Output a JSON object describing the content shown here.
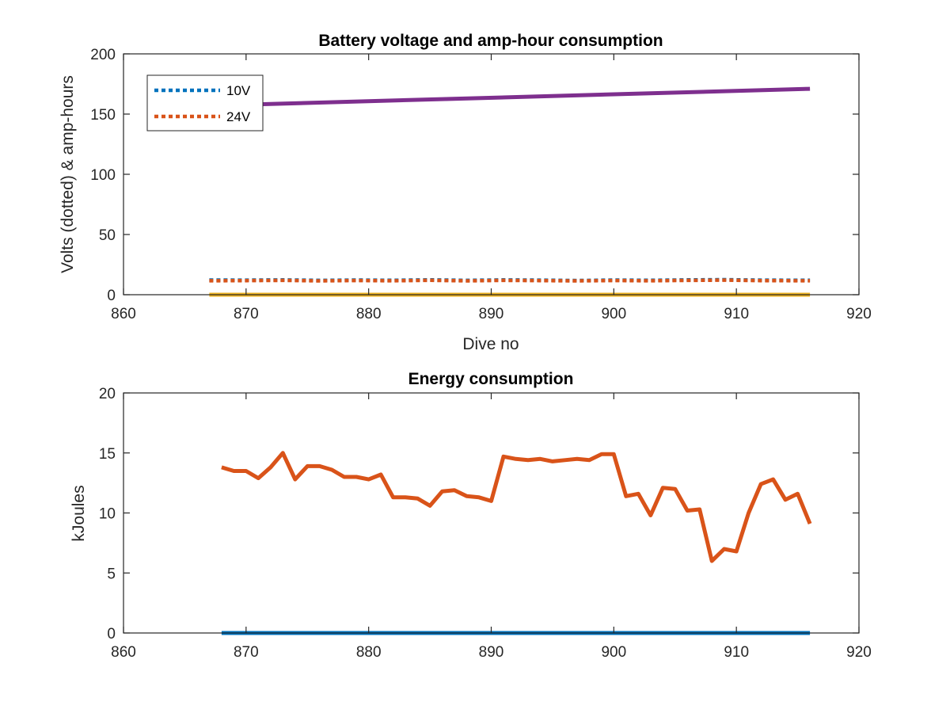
{
  "chart_data": [
    {
      "type": "line",
      "title": "Battery voltage and amp-hour consumption",
      "xlabel": "Dive no",
      "ylabel": "Volts (dotted) & amp-hours",
      "xlim": [
        860,
        920
      ],
      "ylim": [
        0,
        200
      ],
      "xticks": [
        860,
        870,
        880,
        890,
        900,
        910,
        920
      ],
      "yticks": [
        0,
        50,
        100,
        150,
        200
      ],
      "legend": {
        "placement": "top-left",
        "entries": [
          "10V",
          "24V"
        ]
      },
      "series": [
        {
          "name": "10V",
          "style": "dotted",
          "color": "#0072BD",
          "x": [
            867,
            870,
            873,
            876,
            879,
            882,
            885,
            888,
            891,
            894,
            897,
            900,
            903,
            906,
            909,
            912,
            916
          ],
          "y": [
            12.2,
            12.1,
            12.3,
            11.9,
            12.2,
            12.0,
            12.4,
            11.9,
            12.3,
            12.1,
            11.8,
            12.2,
            12.0,
            12.3,
            12.5,
            12.1,
            12.0
          ]
        },
        {
          "name": "24V",
          "style": "dotted",
          "color": "#D95319",
          "x": [
            867,
            870,
            873,
            876,
            879,
            882,
            885,
            888,
            891,
            894,
            897,
            900,
            903,
            906,
            909,
            912,
            916
          ],
          "y": [
            11.6,
            11.7,
            11.9,
            11.5,
            11.8,
            11.6,
            12.0,
            11.5,
            11.9,
            11.7,
            11.5,
            11.8,
            11.6,
            11.9,
            12.1,
            11.7,
            11.6
          ]
        },
        {
          "style": "solid",
          "color": "#EDB120",
          "x": [
            867,
            916
          ],
          "y": [
            0,
            0
          ]
        },
        {
          "style": "solid",
          "color": "#7E2F8E",
          "x": [
            867,
            916
          ],
          "y": [
            157,
            171
          ]
        }
      ]
    },
    {
      "type": "line",
      "title": "Energy consumption",
      "xlabel": "",
      "ylabel": "kJoules",
      "xlim": [
        860,
        920
      ],
      "ylim": [
        0,
        20
      ],
      "xticks": [
        860,
        870,
        880,
        890,
        900,
        910,
        920
      ],
      "yticks": [
        0,
        5,
        10,
        15,
        20
      ],
      "series": [
        {
          "style": "solid",
          "color": "#0072BD",
          "x": [
            868,
            916
          ],
          "y": [
            0,
            0
          ]
        },
        {
          "style": "solid",
          "color": "#D95319",
          "x": [
            868,
            869,
            870,
            871,
            872,
            873,
            874,
            875,
            876,
            877,
            878,
            879,
            880,
            881,
            882,
            883,
            884,
            885,
            886,
            887,
            888,
            889,
            890,
            891,
            892,
            893,
            894,
            895,
            896,
            897,
            898,
            899,
            900,
            901,
            902,
            903,
            904,
            905,
            906,
            907,
            908,
            909,
            910,
            911,
            912,
            913,
            914,
            915,
            916
          ],
          "y": [
            13.8,
            13.5,
            13.5,
            12.9,
            13.8,
            15.0,
            12.8,
            13.9,
            13.9,
            13.6,
            13.0,
            13.0,
            12.8,
            13.2,
            11.3,
            11.3,
            11.2,
            10.6,
            11.8,
            11.9,
            11.4,
            11.3,
            11.0,
            14.7,
            14.5,
            14.4,
            14.5,
            14.3,
            14.4,
            14.5,
            14.4,
            14.9,
            14.9,
            11.4,
            11.6,
            9.8,
            12.1,
            12.0,
            10.2,
            10.3,
            6.0,
            7.0,
            6.8,
            10.0,
            12.4,
            12.8,
            11.1,
            11.6,
            9.1
          ]
        }
      ]
    }
  ]
}
